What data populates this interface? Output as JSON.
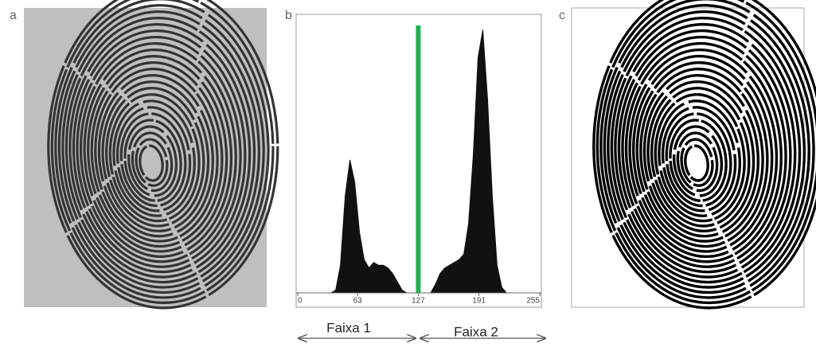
{
  "panel_labels": [
    "a",
    "b",
    "c"
  ],
  "chart_data": {
    "type": "histogram",
    "x": [
      0,
      5,
      10,
      15,
      20,
      25,
      30,
      35,
      40,
      45,
      50,
      55,
      60,
      65,
      70,
      75,
      80,
      85,
      90,
      95,
      100,
      105,
      110,
      115,
      120,
      125,
      130,
      135,
      140,
      145,
      150,
      155,
      160,
      165,
      170,
      175,
      180,
      185,
      190,
      195,
      200,
      205,
      210,
      215,
      220,
      225,
      230,
      235,
      240,
      245,
      250,
      255
    ],
    "values": [
      0,
      0,
      0,
      0,
      0,
      0,
      0,
      0,
      1,
      10,
      35,
      48,
      40,
      22,
      12,
      9,
      11,
      10,
      10,
      9,
      7,
      4,
      1,
      0,
      0,
      0,
      0,
      0,
      0,
      3,
      7,
      9,
      10,
      11,
      12,
      14,
      25,
      50,
      85,
      95,
      70,
      35,
      10,
      2,
      0,
      0,
      0,
      0,
      0,
      0,
      0,
      0
    ],
    "color": "#111111",
    "xlim": [
      0,
      255
    ],
    "ylim": [
      0,
      100
    ],
    "xticks": [
      0,
      63,
      127,
      191,
      255
    ],
    "threshold": 127,
    "threshold_color": "#22b14c",
    "annotations": [
      "Faixa 1",
      "Faixa 2"
    ]
  }
}
